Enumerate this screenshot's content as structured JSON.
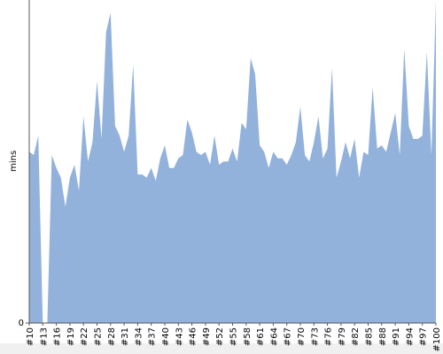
{
  "chart_data": {
    "type": "area",
    "ylabel": "mins",
    "categories": [
      "#10",
      null,
      null,
      "#13",
      null,
      null,
      "#16",
      null,
      null,
      "#19",
      null,
      null,
      "#22",
      null,
      null,
      "#25",
      null,
      null,
      "#28",
      null,
      null,
      "#31",
      null,
      null,
      "#34",
      null,
      null,
      "#37",
      null,
      null,
      "#40",
      null,
      null,
      "#43",
      null,
      null,
      "#46",
      null,
      null,
      "#49",
      null,
      null,
      "#52",
      null,
      null,
      "#55",
      null,
      null,
      "#58",
      null,
      null,
      "#61",
      null,
      null,
      "#64",
      null,
      null,
      "#67",
      null,
      null,
      "#70",
      null,
      null,
      "#73",
      null,
      null,
      "#76",
      null,
      null,
      "#79",
      null,
      null,
      "#82",
      null,
      null,
      "#85",
      null,
      null,
      "#88",
      null,
      null,
      "#91",
      null,
      null,
      "#94",
      null,
      null,
      "#97",
      null,
      null,
      "#100"
    ],
    "values": [
      53,
      52,
      58,
      0,
      0,
      52,
      48,
      45,
      36,
      45,
      49,
      41,
      64,
      50,
      56,
      75,
      57,
      90,
      96,
      61,
      58,
      53,
      58,
      80,
      46,
      46,
      45,
      48,
      44,
      51,
      55,
      48,
      48,
      51,
      52,
      63,
      59,
      53,
      52,
      53,
      49,
      58,
      49,
      50,
      50,
      54,
      50,
      62,
      60,
      82,
      77,
      55,
      53,
      48,
      53,
      51,
      51,
      49,
      52,
      56,
      67,
      52,
      50,
      56,
      64,
      51,
      54,
      79,
      45,
      50,
      56,
      51,
      57,
      45,
      53,
      52,
      73,
      54,
      55,
      53,
      59,
      65,
      52,
      85,
      61,
      57,
      57,
      58,
      84,
      52,
      100
    ],
    "color": "#92b2dc",
    "ylim": [
      0,
      100
    ],
    "yticks": [
      0
    ]
  }
}
